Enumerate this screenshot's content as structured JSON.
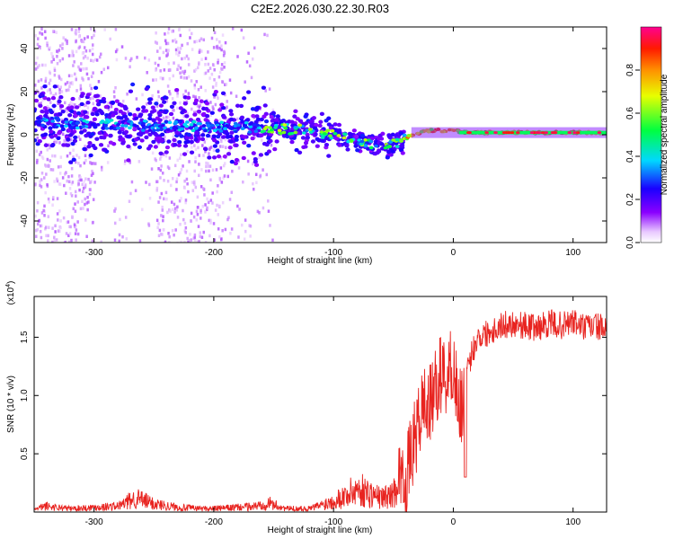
{
  "title": "C2E2.2026.030.22.30.R03",
  "colors": {
    "snr_line": "#e8231f",
    "frame": "#000000"
  },
  "chart_data": [
    {
      "type": "heatmap",
      "title": "C2E2.2026.030.22.30.R03",
      "xlabel": "Height of straight line (km)",
      "ylabel": "Frequency (Hz)",
      "xlim": [
        -350,
        128
      ],
      "ylim": [
        -50,
        50
      ],
      "xticks": [
        -300,
        -200,
        -100,
        0,
        100
      ],
      "xtick_labels": [
        "-300",
        "-200",
        "-100",
        "0",
        "100"
      ],
      "yticks": [
        -40,
        -20,
        0,
        20,
        40
      ],
      "ytick_labels": [
        "-40",
        "-20",
        "0",
        "20",
        "40"
      ],
      "colorbar": {
        "label": "Normalized spectral amplitude",
        "range": [
          0,
          1
        ],
        "ticks": [
          0.0,
          0.2,
          0.4,
          0.6,
          0.8
        ],
        "tick_labels": [
          "0.0",
          "0.2",
          "0.4",
          "0.6",
          "0.8"
        ]
      },
      "ridge": {
        "description": "dominant frequency ridge",
        "x": [
          -350,
          -300,
          -250,
          -200,
          -150,
          -120,
          -100,
          -80,
          -60,
          -45,
          -35,
          -20,
          -10,
          0,
          10,
          128
        ],
        "y": [
          6,
          5,
          4,
          4,
          3,
          2,
          0,
          -3,
          -5,
          -4,
          0,
          2,
          2,
          2,
          1,
          1
        ]
      }
    },
    {
      "type": "line",
      "xlabel": "Height of straight line (km)",
      "ylabel": "SNR (10 * v/v)",
      "yscale_label": "(x10^4)",
      "yscale_base": "(x10",
      "yscale_exp": "4",
      "xlim": [
        -350,
        128
      ],
      "ylim": [
        0,
        1.85
      ],
      "xticks": [
        -300,
        -200,
        -100,
        0,
        100
      ],
      "xtick_labels": [
        "-300",
        "-200",
        "-100",
        "0",
        "100"
      ],
      "yticks": [
        0.5,
        1.0,
        1.5
      ],
      "ytick_labels": [
        "0.5",
        "1.0",
        "1.5"
      ],
      "series": [
        {
          "name": "SNR",
          "x": [
            -350,
            -340,
            -320,
            -300,
            -280,
            -265,
            -250,
            -230,
            -210,
            -200,
            -180,
            -165,
            -155,
            -140,
            -120,
            -110,
            -100,
            -90,
            -80,
            -70,
            -60,
            -50,
            -45,
            -40,
            -35,
            -30,
            -25,
            -20,
            -15,
            -10,
            -5,
            0,
            5,
            10,
            15,
            20,
            25,
            30,
            40,
            50,
            60,
            70,
            80,
            90,
            100,
            110,
            120,
            128
          ],
          "y": [
            0.02,
            0.05,
            0.03,
            0.04,
            0.05,
            0.12,
            0.07,
            0.04,
            0.03,
            0.03,
            0.04,
            0.05,
            0.08,
            0.03,
            0.03,
            0.06,
            0.1,
            0.14,
            0.2,
            0.16,
            0.12,
            0.15,
            0.35,
            0.25,
            0.5,
            0.7,
            0.95,
            0.9,
            1.05,
            1.2,
            1.15,
            1.3,
            0.85,
            1.1,
            1.35,
            1.5,
            1.52,
            1.55,
            1.6,
            1.62,
            1.6,
            1.58,
            1.62,
            1.6,
            1.63,
            1.58,
            1.6,
            1.55
          ]
        }
      ]
    }
  ]
}
